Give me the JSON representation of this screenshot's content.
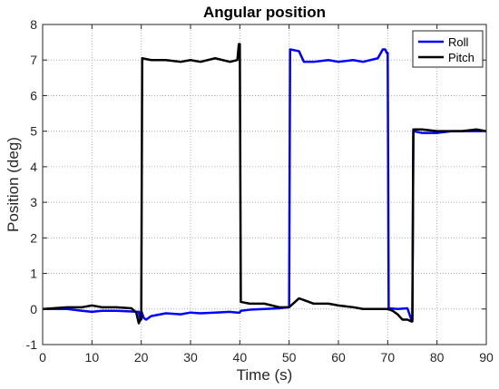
{
  "chart_data": {
    "type": "line",
    "title": "Angular position",
    "xlabel": "Time (s)",
    "ylabel": "Position (deg)",
    "xlim": [
      0,
      90
    ],
    "ylim": [
      -1,
      8
    ],
    "xticks": [
      0,
      10,
      20,
      30,
      40,
      50,
      60,
      70,
      80,
      90
    ],
    "yticks": [
      -1,
      0,
      1,
      2,
      3,
      4,
      5,
      6,
      7,
      8
    ],
    "grid": true,
    "legend_position": "top-right",
    "series": [
      {
        "name": "Roll",
        "color": "#0000FF",
        "x": [
          0,
          5,
          8,
          10,
          12,
          15,
          18,
          19.5,
          19.8,
          20,
          20.5,
          21,
          22,
          25,
          28,
          30,
          32,
          35,
          38,
          39.5,
          40,
          40.2,
          42,
          45,
          48,
          49.8,
          50,
          50.2,
          52,
          53,
          55,
          58,
          60,
          63,
          65,
          68,
          69,
          69.5,
          69.8,
          70,
          70.2,
          72,
          74,
          74.8,
          75,
          75.2,
          77,
          80,
          83,
          85,
          88,
          90
        ],
        "y": [
          0,
          0,
          -0.05,
          -0.08,
          -0.05,
          -0.05,
          -0.07,
          -0.08,
          -0.3,
          -0.05,
          -0.25,
          -0.3,
          -0.2,
          -0.12,
          -0.15,
          -0.1,
          -0.12,
          -0.1,
          -0.08,
          -0.1,
          -0.1,
          -0.05,
          -0.02,
          0,
          0.02,
          0.05,
          0.05,
          7.3,
          7.25,
          6.95,
          6.95,
          7.0,
          6.95,
          7.0,
          6.95,
          7.05,
          7.3,
          7.3,
          7.2,
          7.2,
          0.02,
          0.0,
          0.02,
          -0.3,
          -0.3,
          5.0,
          4.95,
          4.95,
          5.0,
          5.0,
          5.0,
          5.0
        ]
      },
      {
        "name": "Pitch",
        "color": "#000000",
        "x": [
          0,
          5,
          8,
          10,
          12,
          15,
          18,
          19,
          19.5,
          19.8,
          20,
          20.2,
          22,
          25,
          28,
          30,
          32,
          35,
          38,
          39.5,
          39.8,
          40,
          40.2,
          42,
          45,
          48,
          50,
          52,
          53,
          55,
          58,
          60,
          63,
          65,
          68,
          70,
          71,
          72,
          73,
          74,
          74.8,
          75,
          75.2,
          77,
          80,
          83,
          85,
          88,
          90
        ],
        "y": [
          0,
          0.05,
          0.05,
          0.1,
          0.05,
          0.05,
          0.02,
          -0.1,
          -0.4,
          -0.3,
          -0.3,
          7.05,
          7.0,
          7.0,
          6.95,
          7.0,
          6.95,
          7.05,
          6.95,
          7.0,
          7.45,
          7.45,
          0.2,
          0.15,
          0.15,
          0.05,
          0.05,
          0.3,
          0.25,
          0.15,
          0.15,
          0.1,
          0.05,
          0.0,
          0.0,
          0.0,
          -0.05,
          -0.15,
          -0.3,
          -0.3,
          -0.35,
          -0.35,
          5.05,
          5.05,
          5.0,
          5.0,
          5.0,
          5.05,
          5.0
        ]
      }
    ]
  }
}
